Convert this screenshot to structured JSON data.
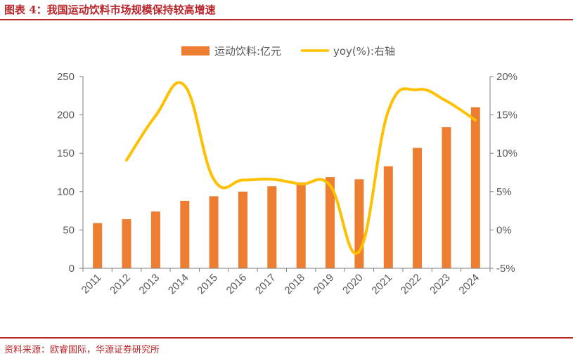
{
  "header": {
    "title": "图表 4：我国运动饮料市场规模保持较高增速"
  },
  "footer": {
    "source": "资料来源：欧睿国际，华源证券研究所"
  },
  "colors": {
    "accent": "#b8262b",
    "bar": "#ed7d31",
    "line": "#ffc000",
    "axis": "#7f7f7f",
    "text": "#595959"
  },
  "chart_data": {
    "type": "bar",
    "title": "",
    "categories": [
      "2011",
      "2012",
      "2013",
      "2014",
      "2015",
      "2016",
      "2017",
      "2018",
      "2019",
      "2020",
      "2021",
      "2022",
      "2023",
      "2024"
    ],
    "series": [
      {
        "name": "运动饮料:亿元",
        "type": "bar",
        "axis": "left",
        "values": [
          59,
          64,
          74,
          88,
          94,
          100,
          107,
          112,
          119,
          116,
          133,
          157,
          184,
          210
        ]
      },
      {
        "name": "yoy(%):右轴",
        "type": "line",
        "axis": "right",
        "values": [
          null,
          9.1,
          14.9,
          18.8,
          6.6,
          6.5,
          6.6,
          6.0,
          5.8,
          -2.8,
          15.5,
          18.3,
          16.8,
          14.3
        ]
      }
    ],
    "y_left": {
      "lim": [
        0,
        250
      ],
      "ticks": [
        0,
        50,
        100,
        150,
        200,
        250
      ],
      "tick_labels": [
        "0",
        "50",
        "100",
        "150",
        "200",
        "250"
      ]
    },
    "y_right": {
      "lim": [
        -5,
        20
      ],
      "ticks": [
        -5,
        0,
        5,
        10,
        15,
        20
      ],
      "tick_labels": [
        "-5%",
        "0%",
        "5%",
        "10%",
        "15%",
        "20%"
      ]
    },
    "legend": {
      "position": "top-center",
      "entries": [
        "运动饮料:亿元",
        "yoy(%):右轴"
      ]
    },
    "xlabel": "",
    "ylabel": "",
    "grid": false
  }
}
